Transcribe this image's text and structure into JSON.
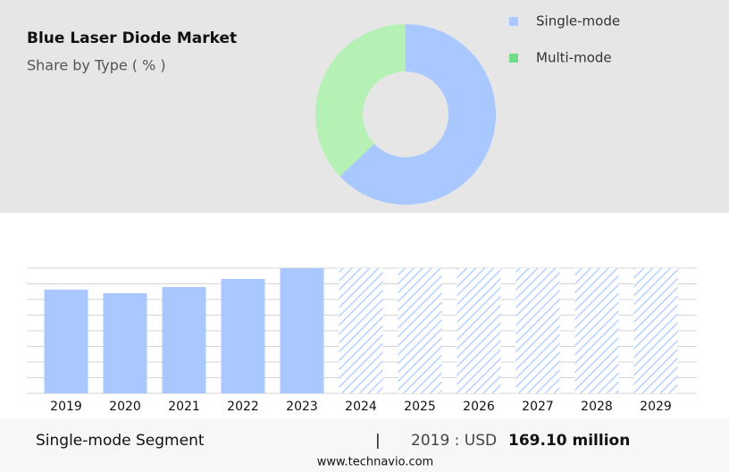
{
  "chart_data": [
    {
      "type": "pie",
      "title": "Blue Laser Diode Market",
      "subtitle": "Share by Type ( % )",
      "categories": [
        "Single-mode",
        "Multi-mode"
      ],
      "values": [
        63,
        37
      ],
      "colors": [
        "#a8c8ff",
        "#b5f0b5"
      ],
      "legend_colors": [
        "#a8c8ff",
        "#6fdc8c"
      ]
    },
    {
      "type": "bar",
      "categories": [
        "2019",
        "2020",
        "2021",
        "2022",
        "2023",
        "2024",
        "2025",
        "2026",
        "2027",
        "2028",
        "2029"
      ],
      "values": [
        169.1,
        163.3,
        173.5,
        186.6,
        204.1,
        null,
        null,
        null,
        null,
        null,
        null
      ],
      "color": "#a8c8ff",
      "ylim": [
        0,
        204.1
      ],
      "grid": true
    }
  ],
  "footer": {
    "segment": "Single-mode Segment",
    "separator": "|",
    "year_label": "2019 : USD",
    "value_label": "169.10 million",
    "source": "www.technavio.com"
  }
}
